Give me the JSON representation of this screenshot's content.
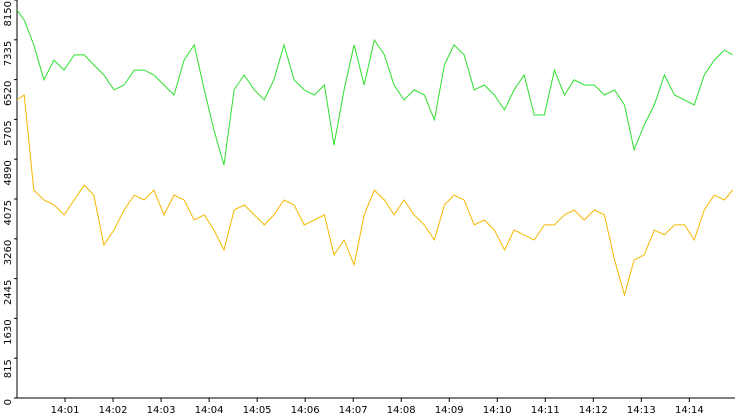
{
  "chart_data": {
    "type": "line",
    "x": [
      0,
      0.15,
      0.35,
      0.56,
      0.77,
      0.98,
      1.19,
      1.4,
      1.6,
      1.81,
      2.02,
      2.23,
      2.44,
      2.65,
      2.85,
      3.06,
      3.27,
      3.48,
      3.69,
      3.9,
      4.1,
      4.31,
      4.52,
      4.73,
      4.94,
      5.15,
      5.35,
      5.56,
      5.77,
      5.98,
      6.19,
      6.4,
      6.6,
      6.81,
      7.02,
      7.23,
      7.44,
      7.65,
      7.85,
      8.06,
      8.27,
      8.48,
      8.69,
      8.9,
      9.1,
      9.31,
      9.52,
      9.73,
      9.94,
      10.15,
      10.35,
      10.56,
      10.77,
      10.98,
      11.19,
      11.4,
      11.6,
      11.81,
      12.02,
      12.23,
      12.44,
      12.65,
      12.85,
      13.06,
      13.27,
      13.48,
      13.69,
      13.9,
      14.1,
      14.31,
      14.52,
      14.73,
      14.9
    ],
    "series": [
      {
        "color": "#2ee02e",
        "values": [
          7945,
          7740,
          7230,
          6515,
          6920,
          6715,
          7025,
          7025,
          6820,
          6615,
          6310,
          6410,
          6715,
          6715,
          6615,
          6410,
          6205,
          6920,
          7230,
          6310,
          5490,
          4770,
          6310,
          6615,
          6310,
          6105,
          6515,
          7230,
          6515,
          6310,
          6205,
          6410,
          5180,
          6310,
          7230,
          6410,
          7330,
          7025,
          6410,
          6105,
          6310,
          6205,
          5695,
          6820,
          7230,
          7025,
          6310,
          6410,
          6205,
          5900,
          6310,
          6615,
          5795,
          5795,
          6715,
          6205,
          6515,
          6410,
          6410,
          6205,
          6310,
          6000,
          5080,
          5590,
          6000,
          6615,
          6205,
          6105,
          6000,
          6615,
          6920,
          7125,
          7025
        ]
      },
      {
        "color": "#f5b800",
        "values": [
          6105,
          6205,
          4260,
          4055,
          3955,
          3750,
          4055,
          4360,
          4155,
          3135,
          3440,
          3850,
          4155,
          4055,
          4260,
          3750,
          4155,
          4055,
          3645,
          3750,
          3440,
          3030,
          3850,
          3955,
          3750,
          3545,
          3750,
          4055,
          3955,
          3545,
          3645,
          3750,
          2930,
          3235,
          2725,
          3750,
          4260,
          4055,
          3750,
          4055,
          3750,
          3545,
          3235,
          3955,
          4155,
          4055,
          3545,
          3645,
          3440,
          3030,
          3440,
          3340,
          3235,
          3545,
          3545,
          3750,
          3850,
          3645,
          3850,
          3750,
          2825,
          2110,
          2825,
          2930,
          3440,
          3340,
          3545,
          3545,
          3235,
          3850,
          4155,
          4055,
          4260
        ]
      }
    ],
    "xlim": [
      0,
      14.95
    ],
    "xticks": [
      {
        "value": 1,
        "label": "14:01"
      },
      {
        "value": 2,
        "label": "14:02"
      },
      {
        "value": 3,
        "label": "14:03"
      },
      {
        "value": 4,
        "label": "14:04"
      },
      {
        "value": 5,
        "label": "14:05"
      },
      {
        "value": 6,
        "label": "14:06"
      },
      {
        "value": 7,
        "label": "14:07"
      },
      {
        "value": 8,
        "label": "14:08"
      },
      {
        "value": 9,
        "label": "14:09"
      },
      {
        "value": 10,
        "label": "14:10"
      },
      {
        "value": 11,
        "label": "14:11"
      },
      {
        "value": 12,
        "label": "14:12"
      },
      {
        "value": 13,
        "label": "14:13"
      },
      {
        "value": 14,
        "label": "14:14"
      }
    ],
    "ylim": [
      0,
      8150
    ],
    "yticks": [
      0,
      815,
      1630,
      2445,
      3260,
      4075,
      4890,
      5705,
      6520,
      7335,
      8150
    ]
  }
}
